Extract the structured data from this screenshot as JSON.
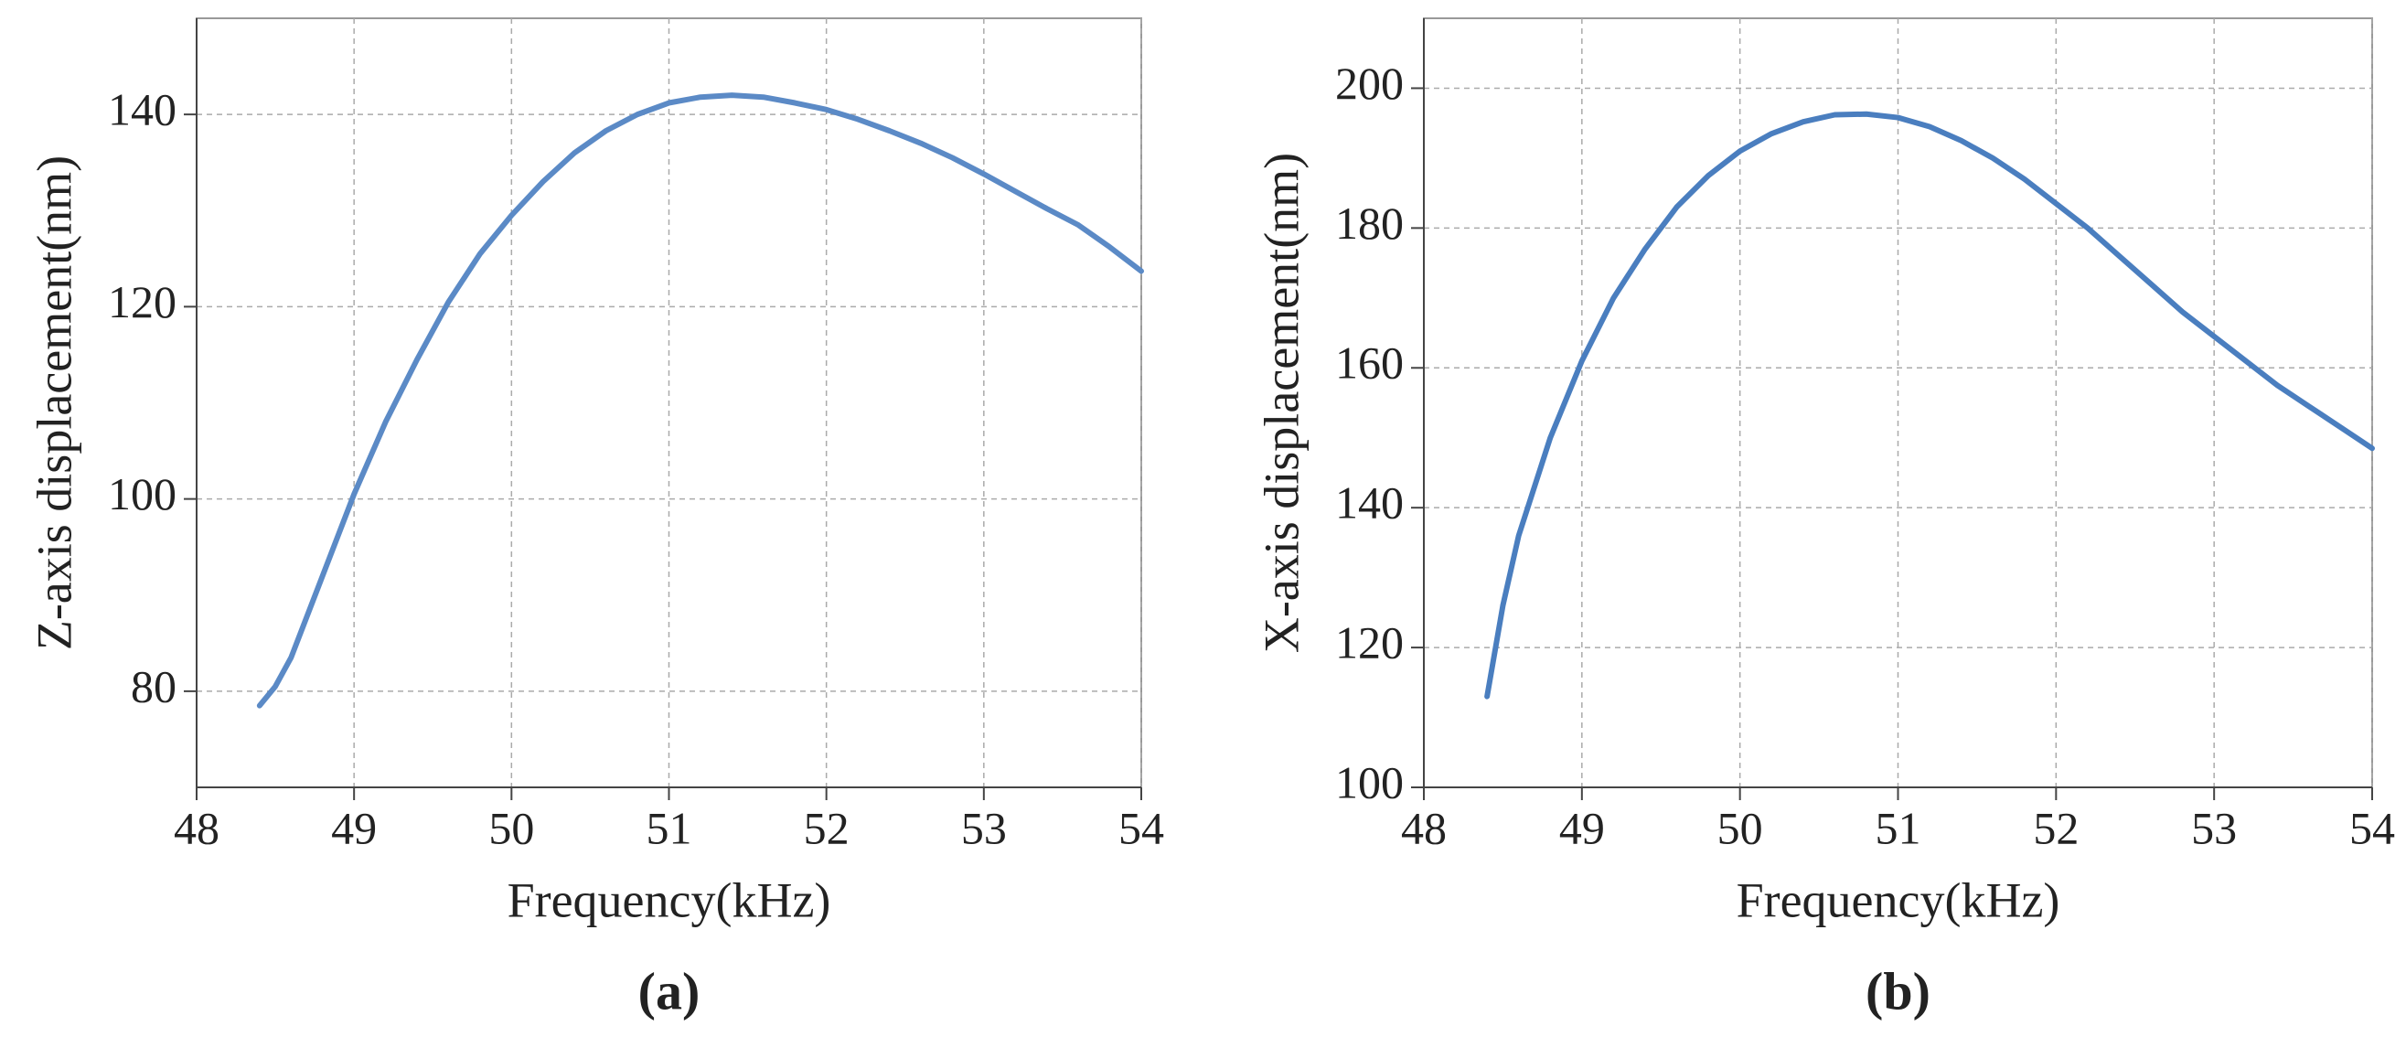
{
  "chart_data": [
    {
      "type": "line",
      "panel_label": "(a)",
      "xlabel": "Frequency(kHz)",
      "ylabel": "Z-axis displacement(nm)",
      "x": [
        48.4,
        48.5,
        48.6,
        48.8,
        49.0,
        49.2,
        49.4,
        49.6,
        49.8,
        50.0,
        50.2,
        50.4,
        50.6,
        50.8,
        51.0,
        51.2,
        51.4,
        51.6,
        51.8,
        52.0,
        52.2,
        52.4,
        52.6,
        52.8,
        53.0,
        53.2,
        53.4,
        53.6,
        53.8,
        54.0
      ],
      "series": [
        {
          "color": "#5b8ac6",
          "values": [
            78.5,
            80.5,
            83.5,
            92,
            100.5,
            108,
            114.5,
            120.5,
            125.5,
            129.5,
            133,
            136,
            138.3,
            140,
            141.2,
            141.8,
            142,
            141.8,
            141.2,
            140.5,
            139.5,
            138.3,
            137,
            135.5,
            133.8,
            132,
            130.2,
            128.5,
            126.2,
            123.7
          ]
        }
      ],
      "xlim": [
        48,
        54
      ],
      "xticks": [
        48,
        49,
        50,
        51,
        52,
        53,
        54
      ],
      "ylim": [
        70,
        150
      ],
      "yticks": [
        80,
        100,
        120,
        140
      ],
      "grid": true
    },
    {
      "type": "line",
      "panel_label": "(b)",
      "xlabel": "Frequency(kHz)",
      "ylabel": "X-axis displacement(nm)",
      "x": [
        48.4,
        48.5,
        48.6,
        48.8,
        49.0,
        49.2,
        49.4,
        49.6,
        49.8,
        50.0,
        50.2,
        50.4,
        50.6,
        50.8,
        51.0,
        51.2,
        51.4,
        51.6,
        51.8,
        52.0,
        52.2,
        52.4,
        52.6,
        52.8,
        53.0,
        53.2,
        53.4,
        53.6,
        53.8,
        54.0
      ],
      "series": [
        {
          "color": "#4a7ebf",
          "values": [
            113,
            126,
            136,
            150,
            161,
            170,
            177,
            183,
            187.5,
            191,
            193.5,
            195.2,
            196.2,
            196.3,
            195.8,
            194.5,
            192.5,
            190,
            187,
            183.5,
            180,
            176,
            172,
            168,
            164.5,
            161,
            157.5,
            154.5,
            151.5,
            148.5
          ]
        }
      ],
      "xlim": [
        48,
        54
      ],
      "xticks": [
        48,
        49,
        50,
        51,
        52,
        53,
        54
      ],
      "ylim": [
        100,
        210
      ],
      "yticks": [
        100,
        120,
        140,
        160,
        180,
        200
      ],
      "grid": true
    }
  ]
}
